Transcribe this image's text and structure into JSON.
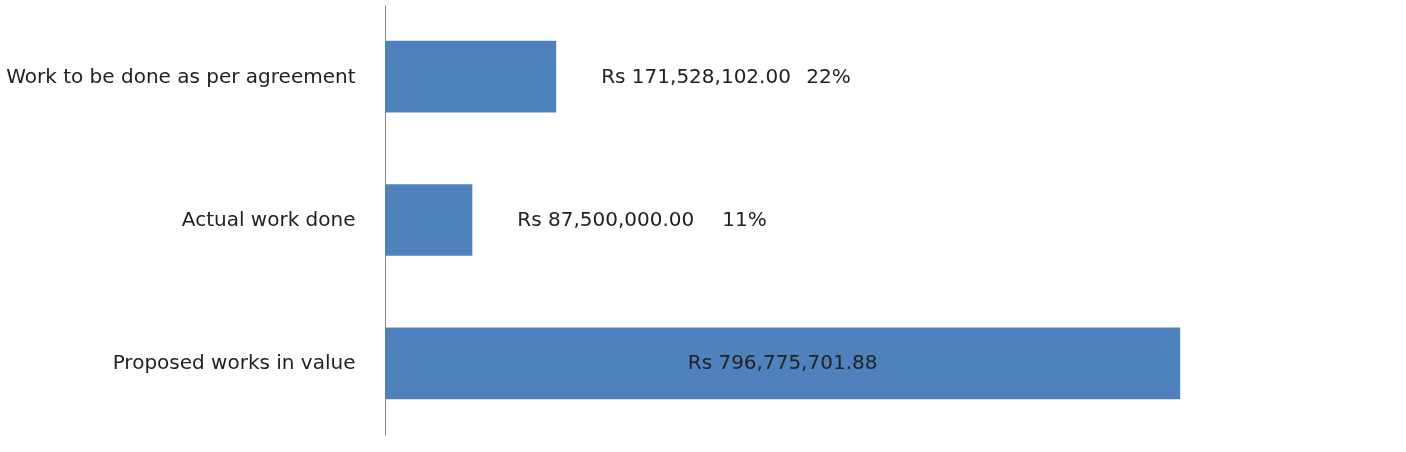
{
  "chart_data": {
    "type": "bar",
    "orientation": "horizontal",
    "categories": [
      "Work to be done as per agreement",
      "Actual work done",
      "Proposed works in value"
    ],
    "values": [
      171528102.0,
      87500000.0,
      796775701.88
    ],
    "color": "#4f81bd",
    "value_labels": [
      "Rs 171,528,102.00",
      "Rs 87,500,000.00",
      "Rs 796,775,701.88"
    ],
    "annotations": [
      "22%",
      "11%"
    ],
    "grid": false
  }
}
